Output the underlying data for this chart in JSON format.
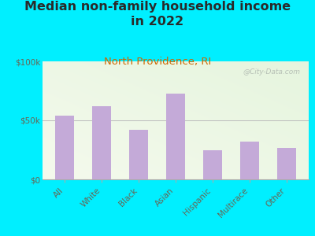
{
  "title": "Median non-family household income\nin 2022",
  "subtitle": "North Providence, RI",
  "categories": [
    "All",
    "White",
    "Black",
    "Asian",
    "Hispanic",
    "Multirace",
    "Other"
  ],
  "values": [
    54000,
    62000,
    42000,
    73000,
    25000,
    32000,
    27000
  ],
  "bar_color": "#c4aad8",
  "background_outer": "#00efff",
  "background_inner_top_left": "#e8f5e2",
  "background_inner_top_right": "#d8eecc",
  "background_inner_bottom": "#fafaf5",
  "title_color": "#2a2a2a",
  "subtitle_color": "#cc6600",
  "tick_label_color": "#666655",
  "ytick_labels": [
    "$0",
    "$50k",
    "$100k"
  ],
  "ytick_values": [
    0,
    50000,
    100000
  ],
  "ylim": [
    0,
    100000
  ],
  "watermark": "@City-Data.com",
  "title_fontsize": 11.5,
  "subtitle_fontsize": 9.5,
  "tick_fontsize": 7.5
}
